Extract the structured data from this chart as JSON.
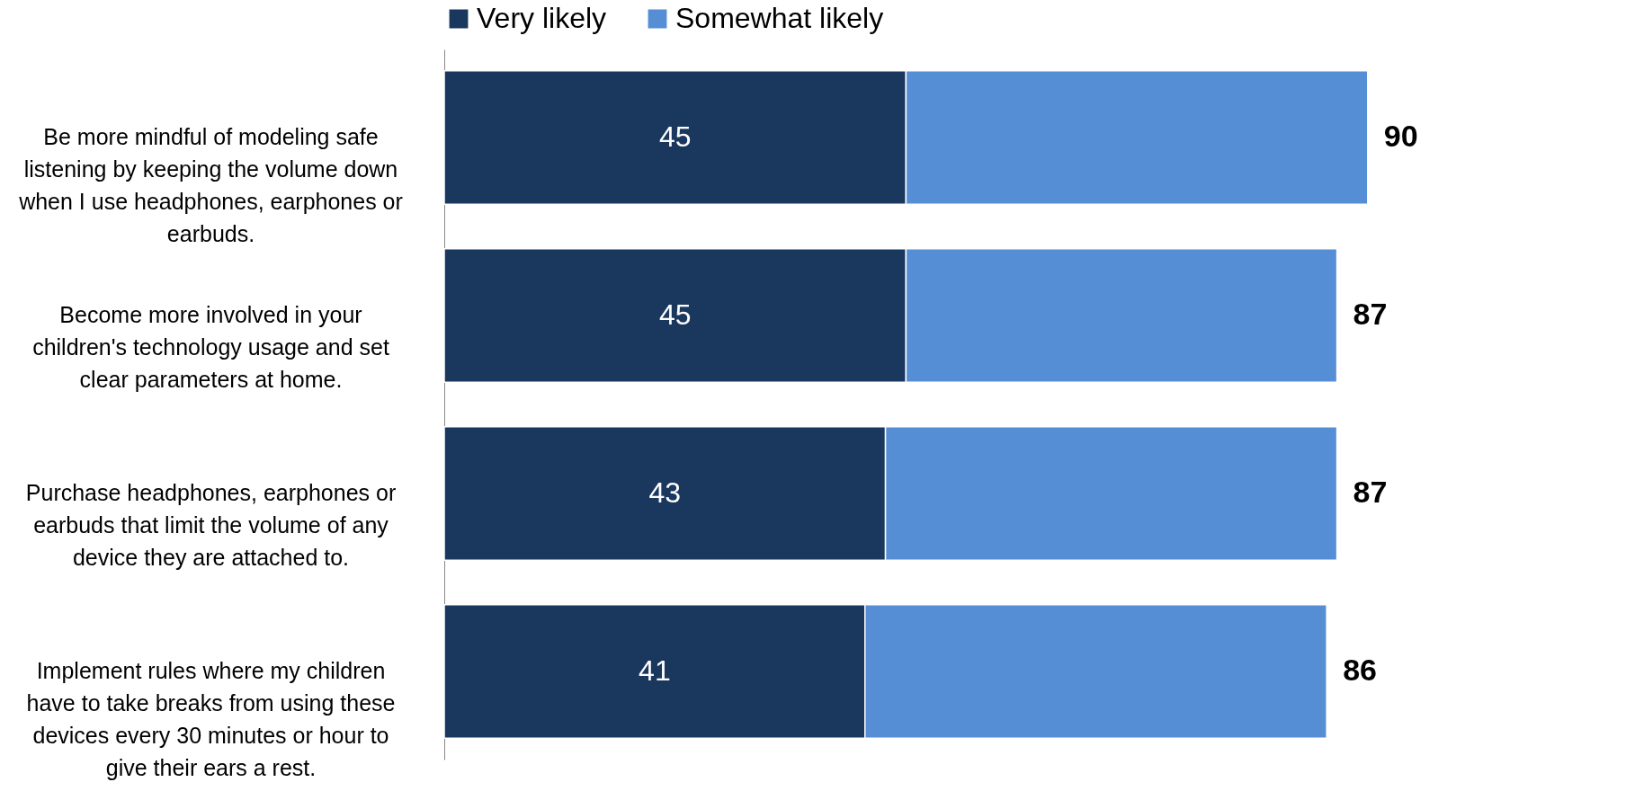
{
  "chart_data": {
    "type": "bar",
    "orientation": "horizontal",
    "stacked": true,
    "legend": "top",
    "grid": false,
    "tick_labels": "y",
    "categories": [
      "Be more mindful of modeling safe listening by keeping the volume down when I use headphones, earphones or earbuds.",
      "Become more involved in your children's technology usage and set clear parameters at home.",
      "Purchase headphones, earphones or earbuds that limit the volume of any device they are attached to.",
      "Implement rules where my children have to take breaks from using these devices every 30 minutes or hour to give their ears a rest."
    ],
    "series": [
      {
        "name": "Very likely",
        "color": "#1a375e",
        "values": [
          45,
          45,
          43,
          41
        ],
        "value_labels": [
          "45",
          "45",
          "43",
          "41"
        ]
      },
      {
        "name": "Somewhat likely",
        "color": "#558ed5",
        "values": [
          45,
          42,
          44,
          45
        ]
      }
    ],
    "totals": [
      "90",
      "87",
      "87",
      "86"
    ]
  }
}
